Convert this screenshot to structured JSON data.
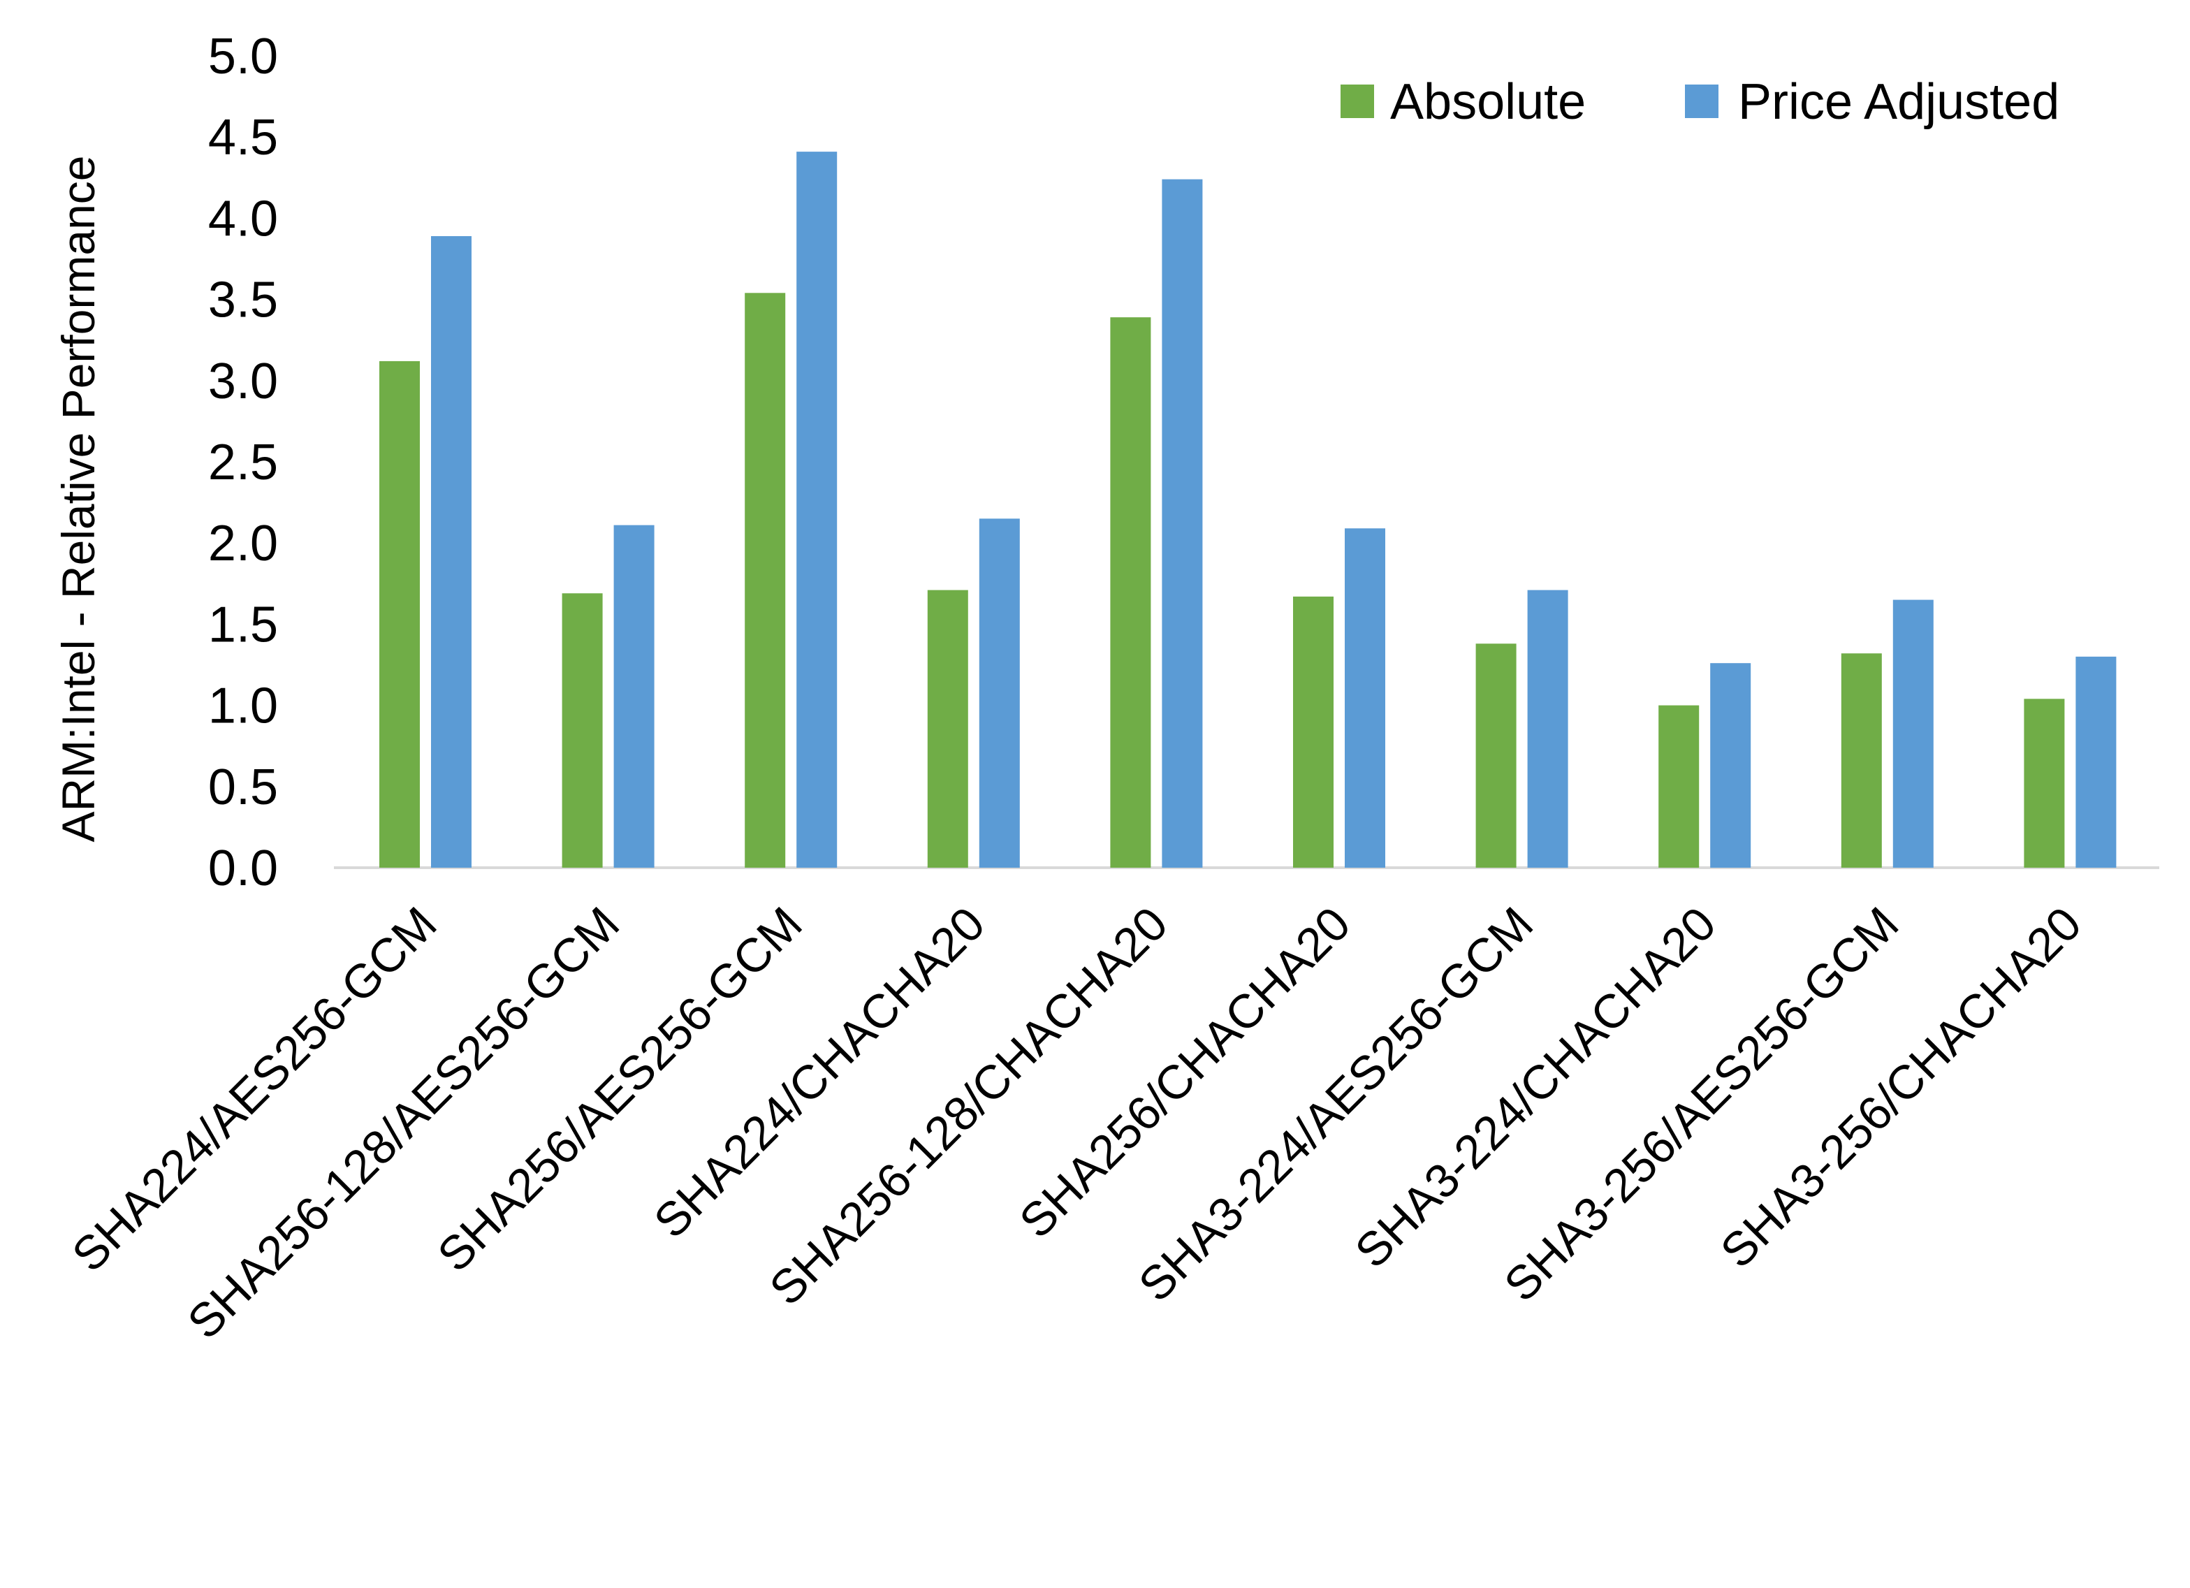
{
  "chart_data": {
    "type": "bar",
    "title": "",
    "xlabel": "",
    "ylabel": "ARM:Intel - Relative Performance",
    "ylim": [
      0,
      5
    ],
    "yticks": [
      "0.0",
      "0.5",
      "1.0",
      "1.5",
      "2.0",
      "2.5",
      "3.0",
      "3.5",
      "4.0",
      "4.5",
      "5.0"
    ],
    "grid": false,
    "legend_position": "top-right",
    "categories": [
      "SHA224/AES256-GCM",
      "SHA256-128/AES256-GCM",
      "SHA256/AES256-GCM",
      "SHA224/CHACHA20",
      "SHA256-128/CHACHA20",
      "SHA256/CHACHA20",
      "SHA3-224/AES256-GCM",
      "SHA3-224/CHACHA20",
      "SHA3-256/AES256-GCM",
      "SHA3-256/CHACHA20"
    ],
    "series": [
      {
        "name": "Absolute",
        "color": "#70AD47",
        "values": [
          3.12,
          1.69,
          3.54,
          1.71,
          3.39,
          1.67,
          1.38,
          1.0,
          1.32,
          1.04
        ]
      },
      {
        "name": "Price Adjusted",
        "color": "#5B9BD5",
        "values": [
          3.89,
          2.11,
          4.41,
          2.15,
          4.24,
          2.09,
          1.71,
          1.26,
          1.65,
          1.3
        ]
      }
    ],
    "axis_color": "#D9D9D9"
  }
}
